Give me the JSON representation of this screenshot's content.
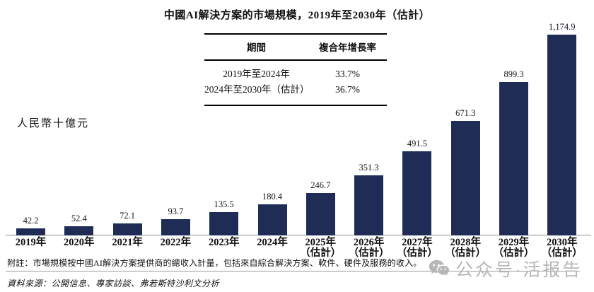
{
  "title": "中國AI解決方案的市場規模，2019年至2030年（估計）",
  "unit_label": "人民幣十億元",
  "cagr_table": {
    "headers": [
      "期間",
      "複合年增長率"
    ],
    "rows": [
      {
        "period": "2019年至2024年",
        "cagr": "33.7%"
      },
      {
        "period": "2024年至2030年（估計）",
        "cagr": "36.7%"
      }
    ]
  },
  "chart_data": {
    "type": "bar",
    "title": "中國AI解決方案的市場規模，2019年至2030年（估計）",
    "ylabel": "人民幣十億元",
    "ylim": [
      0,
      1250
    ],
    "grid": false,
    "legend": "none",
    "bar_color": "#1f2d56",
    "categories": [
      "2019年",
      "2020年",
      "2021年",
      "2022年",
      "2023年",
      "2024年",
      "2025年（估計）",
      "2026年（估計）",
      "2027年（估計）",
      "2028年（估計）",
      "2029年（估計）",
      "2030年（估計）"
    ],
    "values": [
      42.2,
      52.4,
      72.1,
      93.7,
      135.5,
      180.4,
      246.7,
      351.3,
      491.5,
      671.3,
      899.3,
      1174.9
    ],
    "bars": [
      {
        "year": "2019年",
        "sub": "",
        "value": 42.2,
        "label": "42.2"
      },
      {
        "year": "2020年",
        "sub": "",
        "value": 52.4,
        "label": "52.4"
      },
      {
        "year": "2021年",
        "sub": "",
        "value": 72.1,
        "label": "72.1"
      },
      {
        "year": "2022年",
        "sub": "",
        "value": 93.7,
        "label": "93.7"
      },
      {
        "year": "2023年",
        "sub": "",
        "value": 135.5,
        "label": "135.5"
      },
      {
        "year": "2024年",
        "sub": "",
        "value": 180.4,
        "label": "180.4"
      },
      {
        "year": "2025年",
        "sub": "（估計）",
        "value": 246.7,
        "label": "246.7"
      },
      {
        "year": "2026年",
        "sub": "（估計）",
        "value": 351.3,
        "label": "351.3"
      },
      {
        "year": "2027年",
        "sub": "（估計）",
        "value": 491.5,
        "label": "491.5"
      },
      {
        "year": "2028年",
        "sub": "（估計）",
        "value": 671.3,
        "label": "671.3"
      },
      {
        "year": "2029年",
        "sub": "（估計）",
        "value": 899.3,
        "label": "899.3"
      },
      {
        "year": "2030年",
        "sub": "（估計）",
        "value": 1174.9,
        "label": "1,174.9"
      }
    ]
  },
  "note": "附註：市場規模按中國AI解決方案提供商的總收入計量，包括來自綜合解決方案、軟件、硬件及服務的收入。",
  "source": "資料來源：公開信息、專家訪談、弗若斯特沙利文分析",
  "watermark": {
    "icon": "wechat-icon",
    "text": "公众号·活报告"
  }
}
